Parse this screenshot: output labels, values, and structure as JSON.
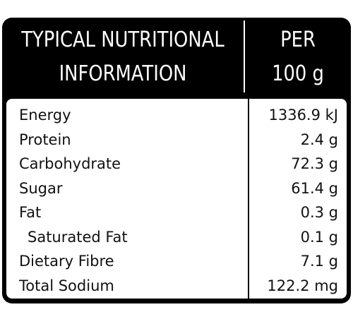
{
  "header": {
    "title_line1": "TYPICAL NUTRITIONAL",
    "title_line2": "INFORMATION",
    "per_line1": "PER",
    "per_line2": "100 g"
  },
  "rows": [
    {
      "name": "Energy",
      "value": "1336.9 kJ"
    },
    {
      "name": "Protein",
      "value": "2.4 g"
    },
    {
      "name": "Carbohydrate",
      "value": "72.3 g"
    },
    {
      "name": "Sugar",
      "value": "61.4 g"
    },
    {
      "name": "Fat",
      "value": "0.3 g"
    },
    {
      "name": "Saturated Fat",
      "value": "0.1 g"
    },
    {
      "name": "Dietary Fibre",
      "value": "7.1 g"
    },
    {
      "name": "Total Sodium",
      "value": "122.2 mg"
    }
  ]
}
